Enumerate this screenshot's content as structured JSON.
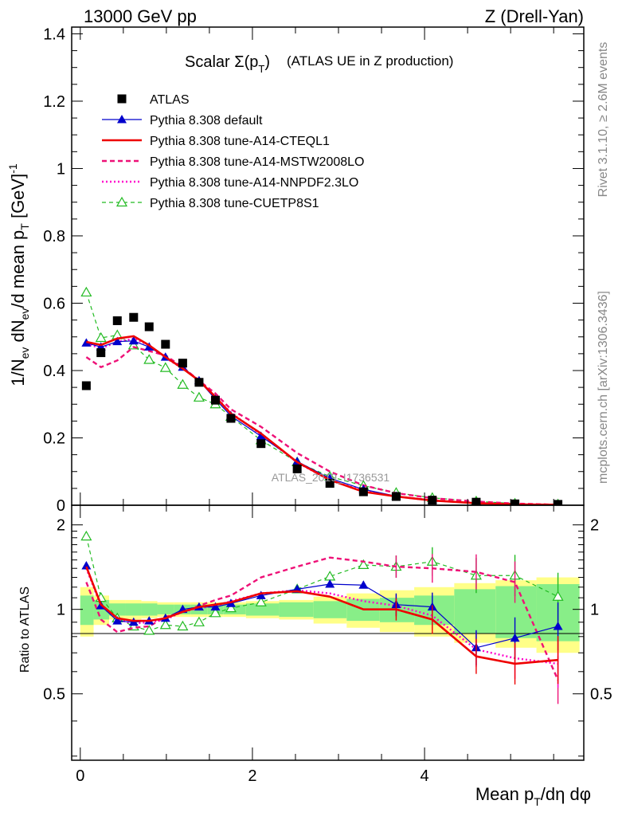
{
  "header": {
    "left": "13000 GeV pp",
    "right": "Z (Drell-Yan)"
  },
  "title": {
    "main": "Scalar Σ(p",
    "sub": "T",
    "close": ")",
    "context": "(ATLAS UE in Z production)"
  },
  "side_labels": {
    "rivet": "Rivet 3.1.10, ≥ 2.6M events",
    "mcplots": "mcplots.cern.ch [arXiv:1306.3436]"
  },
  "watermark": "ATLAS_2019_I1736531",
  "y_label_top": {
    "p1": "1/N",
    "s1": "ev",
    "p2": " dN",
    "s2": "ev",
    "p3": "/d mean p",
    "s3": "T",
    "p4": " [GeV]",
    "sup": "-1"
  },
  "y_label_bottom": "Ratio to ATLAS",
  "x_label": {
    "p1": "Mean p",
    "s1": "T",
    "p2": "/dη dφ"
  },
  "colors": {
    "atlas": "#000000",
    "default": "#0000cc",
    "cteql1": "#ee0000",
    "mstw": "#ee1177",
    "nnpdf": "#ff00cc",
    "cuetp8s1": "#22bb22",
    "band_outer": "#ffff88",
    "band_inner": "#88ee88"
  },
  "chart_data": [
    {
      "type": "line",
      "panel": "main",
      "xlim": [
        -0.1,
        5.85
      ],
      "ylim": [
        0,
        1.42
      ],
      "x_ticks": [
        0,
        2,
        4
      ],
      "y_ticks": [
        0,
        0.2,
        0.4,
        0.6,
        0.8,
        1,
        1.2,
        1.4
      ],
      "y_tick_labels": [
        "0",
        "0.2",
        "0.4",
        "0.6",
        "0.8",
        "1",
        "1.2",
        "1.4"
      ],
      "x": [
        0.07,
        0.24,
        0.43,
        0.62,
        0.8,
        0.99,
        1.19,
        1.38,
        1.57,
        1.75,
        2.1,
        2.52,
        2.9,
        3.29,
        3.67,
        4.09,
        4.6,
        5.05,
        5.55
      ],
      "series": [
        {
          "name": "ATLAS",
          "style": "data",
          "values": [
            0.355,
            0.453,
            0.548,
            0.558,
            0.53,
            0.478,
            0.422,
            0.365,
            0.312,
            0.258,
            0.183,
            0.108,
            0.065,
            0.04,
            0.026,
            0.015,
            0.009,
            0.004,
            0.0025
          ]
        },
        {
          "name": "Pythia 8.308 default",
          "style": "default",
          "values": [
            0.482,
            0.47,
            0.486,
            0.488,
            0.47,
            0.44,
            0.41,
            0.37,
            0.315,
            0.265,
            0.205,
            0.13,
            0.08,
            0.047,
            0.027,
            0.015,
            0.0065,
            0.0032,
            0.002
          ]
        },
        {
          "name": "Pythia 8.308 tune-A14-CTEQL1",
          "style": "cteql1",
          "values": [
            0.485,
            0.476,
            0.495,
            0.502,
            0.475,
            0.44,
            0.406,
            0.37,
            0.322,
            0.272,
            0.213,
            0.128,
            0.075,
            0.04,
            0.026,
            0.014,
            0.006,
            0.0025,
            0.0015
          ]
        },
        {
          "name": "Pythia 8.308 tune-A14-MSTW2008LO",
          "style": "mstw",
          "values": [
            0.44,
            0.41,
            0.43,
            0.47,
            0.458,
            0.445,
            0.41,
            0.37,
            0.332,
            0.285,
            0.233,
            0.155,
            0.1,
            0.059,
            0.036,
            0.021,
            0.011,
            0.005,
            0.0015
          ]
        },
        {
          "name": "Pythia 8.308 tune-A14-NNPDF2.3LO",
          "style": "nnpdf",
          "values": [
            0.48,
            0.466,
            0.485,
            0.495,
            0.475,
            0.438,
            0.406,
            0.372,
            0.322,
            0.275,
            0.21,
            0.127,
            0.074,
            0.043,
            0.026,
            0.014,
            0.007,
            0.003,
            0.0016
          ]
        },
        {
          "name": "Pythia 8.308 tune-CUETP8S1",
          "style": "cuetp8s1",
          "values": [
            0.632,
            0.497,
            0.505,
            0.475,
            0.432,
            0.408,
            0.358,
            0.32,
            0.3,
            0.263,
            0.193,
            0.128,
            0.085,
            0.058,
            0.037,
            0.022,
            0.0115,
            0.0052,
            0.0028
          ]
        }
      ]
    },
    {
      "type": "line",
      "panel": "ratio",
      "xlim": [
        -0.1,
        5.85
      ],
      "ylim": [
        0.29,
        2.35
      ],
      "x_ticks": [
        0,
        2,
        4
      ],
      "x_tick_labels": [
        "0",
        "2",
        "4"
      ],
      "y_ticks": [
        0.5,
        1,
        2
      ],
      "y_tick_labels": [
        "0.5",
        "1",
        "2"
      ],
      "ylabel": "Ratio to ATLAS",
      "x": [
        0.07,
        0.24,
        0.43,
        0.62,
        0.8,
        0.99,
        1.19,
        1.38,
        1.57,
        1.75,
        2.1,
        2.52,
        2.9,
        3.29,
        3.67,
        4.09,
        4.6,
        5.05,
        5.55
      ],
      "band_inner": [
        0.12,
        0.08,
        0.05,
        0.05,
        0.05,
        0.04,
        0.04,
        0.04,
        0.04,
        0.04,
        0.05,
        0.06,
        0.07,
        0.09,
        0.1,
        0.12,
        0.18,
        0.21,
        0.23
      ],
      "band_outer": [
        0.2,
        0.12,
        0.08,
        0.08,
        0.07,
        0.06,
        0.06,
        0.06,
        0.06,
        0.06,
        0.07,
        0.08,
        0.11,
        0.14,
        0.17,
        0.2,
        0.24,
        0.27,
        0.3
      ],
      "series": [
        {
          "name": "Pythia 8.308 default",
          "style": "default",
          "values": [
            1.43,
            1.03,
            0.91,
            0.9,
            0.91,
            0.93,
            1.0,
            1.02,
            1.02,
            1.05,
            1.12,
            1.18,
            1.23,
            1.22,
            1.04,
            1.02,
            0.73,
            0.79,
            0.87
          ]
        },
        {
          "name": "Pythia 8.308 tune-A14-CTEQL1",
          "style": "cteql1",
          "values": [
            1.42,
            1.04,
            0.93,
            0.91,
            0.91,
            0.93,
            0.98,
            1.02,
            1.04,
            1.06,
            1.14,
            1.16,
            1.11,
            1.0,
            1.0,
            0.92,
            0.68,
            0.64,
            0.66
          ]
        },
        {
          "name": "Pythia 8.308 tune-A14-MSTW2008LO",
          "style": "mstw",
          "values": [
            1.25,
            0.92,
            0.83,
            0.86,
            0.87,
            0.94,
            0.98,
            1.03,
            1.08,
            1.12,
            1.3,
            1.42,
            1.53,
            1.48,
            1.42,
            1.4,
            1.36,
            1.25,
            0.56
          ]
        },
        {
          "name": "Pythia 8.308 tune-A14-NNPDF2.3LO",
          "style": "nnpdf",
          "values": [
            1.4,
            1.03,
            0.92,
            0.89,
            0.9,
            0.92,
            0.98,
            1.01,
            1.03,
            1.07,
            1.14,
            1.17,
            1.14,
            1.07,
            1.03,
            0.95,
            0.72,
            0.67,
            0.64
          ]
        },
        {
          "name": "Pythia 8.308 tune-CUETP8S1",
          "style": "cuetp8s1",
          "values": [
            1.82,
            1.1,
            0.93,
            0.87,
            0.84,
            0.88,
            0.87,
            0.9,
            0.97,
            1.01,
            1.06,
            1.18,
            1.31,
            1.44,
            1.42,
            1.48,
            1.32,
            1.32,
            1.11
          ]
        }
      ]
    }
  ]
}
